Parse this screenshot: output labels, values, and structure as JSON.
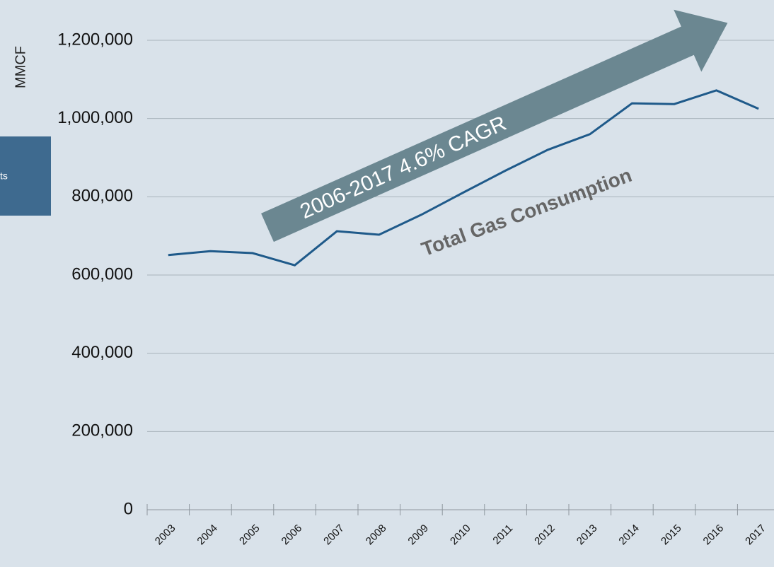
{
  "chart_data": {
    "type": "line",
    "y_label": "MMCF",
    "categories": [
      "2003",
      "2004",
      "2005",
      "2006",
      "2007",
      "2008",
      "2009",
      "2010",
      "2011",
      "2012",
      "2013",
      "2014",
      "2015",
      "2016",
      "2017"
    ],
    "values": [
      651000,
      661000,
      656000,
      625000,
      712000,
      703000,
      754000,
      811000,
      867000,
      920000,
      960000,
      1039000,
      1037000,
      1072000,
      1025000
    ],
    "color": "#1f5a8a",
    "ylim": [
      0,
      1200000
    ],
    "yticks": [
      0,
      {
        "value": 200000,
        "label": "200,000"
      },
      {
        "value": 400000,
        "label": "400,000"
      },
      {
        "value": 600000,
        "label": "600,000"
      },
      {
        "value": 800000,
        "label": "800,000"
      },
      {
        "value": 1000000,
        "label": "1,000,000"
      },
      {
        "value": 1200000,
        "label": "1,200,000"
      }
    ],
    "grid": true,
    "annotations": [
      "2006-2017 4.6% CAGR",
      "Total Gas Consumption"
    ],
    "side_label": "ts"
  }
}
